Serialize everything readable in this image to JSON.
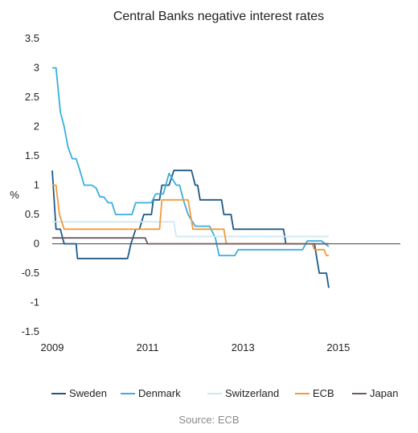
{
  "chart_data": {
    "type": "line",
    "title": "Central Banks negative interest rates",
    "ylabel": "%",
    "xlabel": "",
    "source": "Source: ECB",
    "xlim": [
      2009.0,
      2016.3
    ],
    "ylim": [
      -1.5,
      3.5
    ],
    "x_ticks": [
      2009,
      2011,
      2013,
      2015
    ],
    "y_ticks": [
      -1.5,
      -1,
      -0.5,
      0,
      0.5,
      1,
      1.5,
      2,
      2.5,
      3,
      3.5
    ],
    "y_tick_labels": [
      "-1.5",
      "-1",
      "-0.5",
      "0",
      "0.5",
      "1",
      "1.5",
      "2",
      "2.5",
      "3",
      "3.5"
    ],
    "grid": false,
    "legend_position": "bottom",
    "zero_line": true,
    "series": [
      {
        "name": "Sweden",
        "color": "#1f5a87",
        "points": [
          [
            2009.0,
            1.25
          ],
          [
            2009.08,
            0.25
          ],
          [
            2009.17,
            0.25
          ],
          [
            2009.25,
            0.0
          ],
          [
            2009.5,
            0.0
          ],
          [
            2009.53,
            -0.25
          ],
          [
            2010.58,
            -0.25
          ],
          [
            2010.65,
            0.0
          ],
          [
            2010.75,
            0.25
          ],
          [
            2010.83,
            0.25
          ],
          [
            2010.92,
            0.5
          ],
          [
            2011.08,
            0.5
          ],
          [
            2011.12,
            0.75
          ],
          [
            2011.25,
            0.75
          ],
          [
            2011.3,
            1.0
          ],
          [
            2011.45,
            1.0
          ],
          [
            2011.55,
            1.25
          ],
          [
            2011.92,
            1.25
          ],
          [
            2012.0,
            1.0
          ],
          [
            2012.05,
            1.0
          ],
          [
            2012.1,
            0.75
          ],
          [
            2012.55,
            0.75
          ],
          [
            2012.6,
            0.5
          ],
          [
            2012.75,
            0.5
          ],
          [
            2012.8,
            0.25
          ],
          [
            2013.85,
            0.25
          ],
          [
            2013.9,
            0.0
          ],
          [
            2014.5,
            0.0
          ],
          [
            2014.55,
            -0.25
          ],
          [
            2014.6,
            -0.5
          ],
          [
            2014.75,
            -0.5
          ],
          [
            2014.8,
            -0.75
          ]
        ]
      },
      {
        "name": "Denmark",
        "color": "#3aaedf",
        "points": [
          [
            2009.0,
            3.0
          ],
          [
            2009.08,
            3.0
          ],
          [
            2009.17,
            2.25
          ],
          [
            2009.25,
            2.0
          ],
          [
            2009.33,
            1.65
          ],
          [
            2009.42,
            1.45
          ],
          [
            2009.5,
            1.45
          ],
          [
            2009.58,
            1.25
          ],
          [
            2009.67,
            1.0
          ],
          [
            2009.83,
            1.0
          ],
          [
            2009.92,
            0.95
          ],
          [
            2010.0,
            0.8
          ],
          [
            2010.08,
            0.8
          ],
          [
            2010.17,
            0.7
          ],
          [
            2010.25,
            0.7
          ],
          [
            2010.33,
            0.5
          ],
          [
            2010.67,
            0.5
          ],
          [
            2010.75,
            0.7
          ],
          [
            2011.08,
            0.7
          ],
          [
            2011.17,
            0.85
          ],
          [
            2011.33,
            0.85
          ],
          [
            2011.45,
            1.2
          ],
          [
            2011.6,
            1.0
          ],
          [
            2011.67,
            1.0
          ],
          [
            2011.75,
            0.75
          ],
          [
            2011.85,
            0.5
          ],
          [
            2012.0,
            0.3
          ],
          [
            2012.3,
            0.3
          ],
          [
            2012.42,
            0.1
          ],
          [
            2012.5,
            -0.2
          ],
          [
            2012.83,
            -0.2
          ],
          [
            2012.9,
            -0.1
          ],
          [
            2014.25,
            -0.1
          ],
          [
            2014.35,
            0.05
          ],
          [
            2014.65,
            0.05
          ],
          [
            2014.8,
            -0.05
          ]
        ]
      },
      {
        "name": "Switzerland",
        "color": "#cfe8f3",
        "points": [
          [
            2009.0,
            0.375
          ],
          [
            2011.55,
            0.375
          ],
          [
            2011.6,
            0.125
          ],
          [
            2014.8,
            0.125
          ]
        ]
      },
      {
        "name": "ECB",
        "color": "#f29a3a",
        "points": [
          [
            2009.0,
            1.0
          ],
          [
            2009.08,
            1.0
          ],
          [
            2009.15,
            0.5
          ],
          [
            2009.25,
            0.25
          ],
          [
            2011.25,
            0.25
          ],
          [
            2011.3,
            0.75
          ],
          [
            2011.85,
            0.75
          ],
          [
            2011.95,
            0.25
          ],
          [
            2012.6,
            0.25
          ],
          [
            2012.65,
            0.0
          ],
          [
            2014.45,
            0.0
          ],
          [
            2014.5,
            -0.1
          ],
          [
            2014.7,
            -0.1
          ],
          [
            2014.75,
            -0.2
          ],
          [
            2014.8,
            -0.2
          ]
        ]
      },
      {
        "name": "Japan",
        "color": "#6b5b66",
        "points": [
          [
            2009.0,
            0.1
          ],
          [
            2010.95,
            0.1
          ],
          [
            2011.0,
            0.0
          ],
          [
            2014.8,
            0.0
          ]
        ]
      }
    ]
  }
}
